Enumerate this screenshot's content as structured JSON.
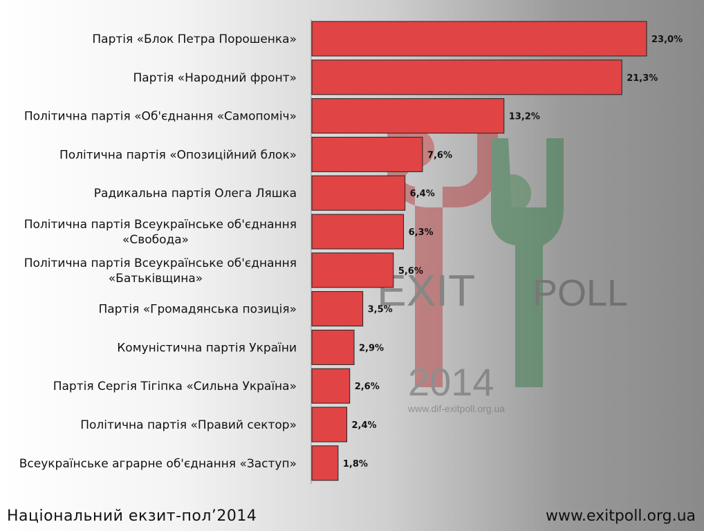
{
  "chart_data": {
    "type": "bar",
    "orientation": "horizontal",
    "categories": [
      [
        "Партія «Блок Петра Порошенка»"
      ],
      [
        "Партія «Народний фронт»"
      ],
      [
        "Політична партія «Об'єднання «Самопоміч»"
      ],
      [
        "Політична партія «Опозиційний блок»"
      ],
      [
        "Радикальна партія Олега Ляшка"
      ],
      [
        "Політична партія Всеукраїнське об'єднання",
        "«Свобода»"
      ],
      [
        "Політична партія Всеукраїнське об'єднання",
        "«Батьківщина»"
      ],
      [
        "Партія «Громадянська позиція»"
      ],
      [
        "Комуністична партія України"
      ],
      [
        "Партія Сергія Тігіпка «Сильна Україна»"
      ],
      [
        "Політична партія «Правий сектор»"
      ],
      [
        "Всеукраїнське аграрне об'єднання «Заступ»"
      ]
    ],
    "values": [
      23.0,
      21.3,
      13.2,
      7.6,
      6.4,
      6.3,
      5.6,
      3.5,
      2.9,
      2.6,
      2.4,
      1.8
    ],
    "value_labels": [
      "23,0%",
      "21,3%",
      "13,2%",
      "7,6%",
      "6,4%",
      "6,3%",
      "5,6%",
      "3,5%",
      "2,9%",
      "2,6%",
      "2,4%",
      "1,8%"
    ],
    "xlim": [
      0,
      23.0
    ],
    "bar_color": "#e04444",
    "bar_border_color": "#222222",
    "grid": false
  },
  "watermark": {
    "exit_text": "EXIT",
    "poll_text": "POLL",
    "year": "2014",
    "url": "www.dif-exitpoll.org.ua"
  },
  "footer": {
    "left": "Національний  екзит-пол’2014",
    "right": "www.exitpoll.org.ua"
  }
}
